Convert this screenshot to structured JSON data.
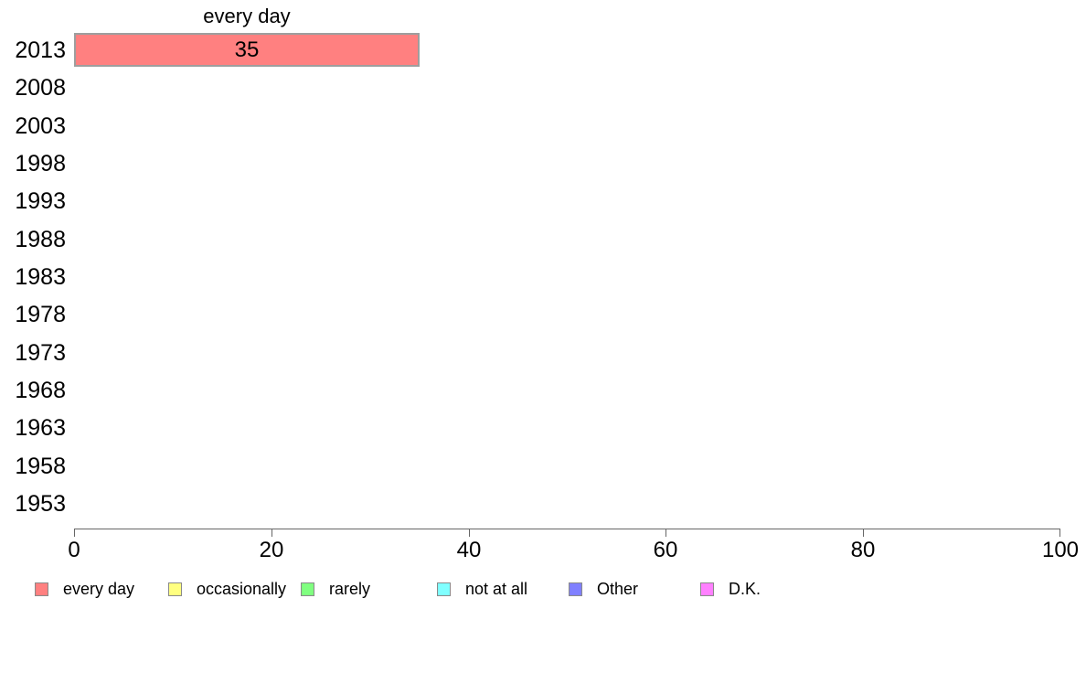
{
  "chart_data": {
    "type": "bar",
    "orientation": "horizontal",
    "title": "every day",
    "categories": [
      "2013",
      "2008",
      "2003",
      "1998",
      "1993",
      "1988",
      "1983",
      "1978",
      "1973",
      "1968",
      "1963",
      "1958",
      "1953"
    ],
    "bars": [
      {
        "category": "2013",
        "series": "every day",
        "value": 35,
        "color": "#FF8080"
      }
    ],
    "xlabel": "",
    "ylabel": "",
    "xlim": [
      0,
      100
    ],
    "x_ticks": [
      0,
      20,
      40,
      60,
      80,
      100
    ],
    "grid": false,
    "legend_position": "bottom",
    "legend": [
      {
        "label": "every day",
        "color": "#FF8080"
      },
      {
        "label": "occasionally",
        "color": "#FFFF80"
      },
      {
        "label": "rarely",
        "color": "#80FF80"
      },
      {
        "label": "not at all",
        "color": "#80FFFF"
      },
      {
        "label": "Other",
        "color": "#8080FF"
      },
      {
        "label": "D.K.",
        "color": "#FF80FF"
      }
    ]
  },
  "colors": {
    "axis": "#666666",
    "bar_border": "#9e9e9e",
    "background": "#ffffff"
  }
}
